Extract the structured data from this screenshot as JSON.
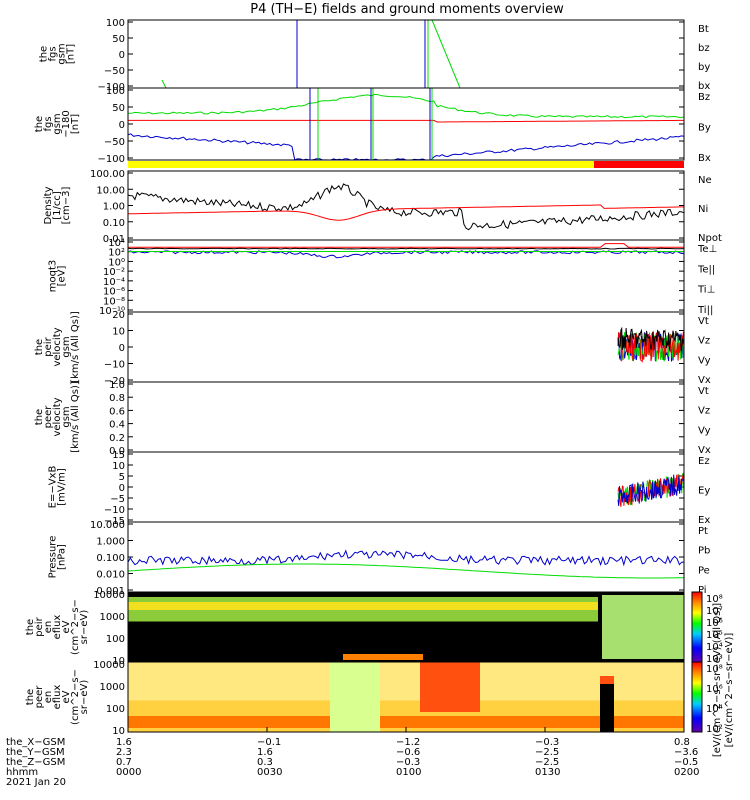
{
  "title": "P4 (TH−E) fields and ground moments overview",
  "colors": {
    "black": "#000000",
    "red": "#ff0000",
    "green": "#00dd00",
    "blue": "#0000cc",
    "yellow": "#ffff00"
  },
  "panels": [
    {
      "id": "fgs",
      "ylabel": [
        "the",
        "fgs",
        "gsm",
        "[nT]"
      ],
      "ticks": [
        "100",
        "50",
        "0",
        "−50",
        "−100"
      ],
      "legend": [
        {
          "label": "Bt",
          "color": "#000000"
        },
        {
          "label": "bz",
          "color": "#ff0000"
        },
        {
          "label": "by",
          "color": "#00dd00"
        },
        {
          "label": "bx",
          "color": "#0000cc"
        }
      ]
    },
    {
      "id": "fgs_dsl",
      "ylabel": [
        "the",
        "fgs",
        "gsm",
        "−180",
        "[nT]"
      ],
      "ticks": [
        "100",
        "50",
        "0",
        "−50",
        "−100"
      ],
      "legend": [
        {
          "label": "Bz",
          "color": "#ff0000"
        },
        {
          "label": "By",
          "color": "#00dd00"
        },
        {
          "label": "Bx",
          "color": "#0000cc"
        }
      ]
    },
    {
      "id": "density",
      "ylabel": [
        "Density",
        "[1/cc]",
        "[cm−3]"
      ],
      "ticks": [
        "100.00",
        "10.00",
        "1.00",
        "0.10",
        "0.01"
      ],
      "legend": [
        {
          "label": "Ne",
          "color": "#ff0000"
        },
        {
          "label": "Ni",
          "color": "#000000"
        },
        {
          "label": "Npot",
          "color": "#0000cc"
        }
      ]
    },
    {
      "id": "temp",
      "ylabel": [
        "moqt3",
        "[eV]"
      ],
      "ticks": [
        "10⁴",
        "10²",
        "10⁰",
        "10⁻²",
        "10⁻⁴",
        "10⁻⁶",
        "10⁻⁸",
        "10⁻¹⁰"
      ],
      "legend": [
        {
          "label": "Te⊥",
          "color": "#ff0000"
        },
        {
          "label": "Te||",
          "color": "#000000"
        },
        {
          "label": "Ti⊥",
          "color": "#0000cc"
        },
        {
          "label": "Ti||",
          "color": "#00dd00"
        }
      ]
    },
    {
      "id": "peir_vel",
      "ylabel": [
        "the",
        "peir",
        "velocity",
        "gsm",
        "[km/s (All Qs)]"
      ],
      "ticks": [
        "20",
        "10",
        "0",
        "−10",
        "−20"
      ],
      "legend": [
        {
          "label": "Vt",
          "color": "#000000"
        },
        {
          "label": "Vz",
          "color": "#ff0000"
        },
        {
          "label": "Vy",
          "color": "#00dd00"
        },
        {
          "label": "Vx",
          "color": "#0000cc"
        }
      ]
    },
    {
      "id": "peer_vel",
      "ylabel": [
        "the",
        "peer",
        "velocity",
        "gsm",
        "[km/s (All Qs)]"
      ],
      "ticks": [
        "1.0",
        "0.8",
        "0.6",
        "0.4",
        "0.2",
        "0.0"
      ],
      "legend": [
        {
          "label": "Vt",
          "color": "#000000"
        },
        {
          "label": "Vz",
          "color": "#ff0000"
        },
        {
          "label": "Vy",
          "color": "#00dd00"
        },
        {
          "label": "Vx",
          "color": "#0000cc"
        }
      ]
    },
    {
      "id": "efield",
      "ylabel": [
        "E=−VxB",
        "[mV/m]"
      ],
      "ticks": [
        "15",
        "10",
        "5",
        "0",
        "−5",
        "−10",
        "−15"
      ],
      "legend": [
        {
          "label": "Ez",
          "color": "#ff0000"
        },
        {
          "label": "Ey",
          "color": "#00dd00"
        },
        {
          "label": "Ex",
          "color": "#0000cc"
        }
      ]
    },
    {
      "id": "pressure",
      "ylabel": [
        "Pressure",
        "[nPa]"
      ],
      "ticks": [
        "10.000",
        "1.000",
        "0.100",
        "0.010",
        "0.001"
      ],
      "legend": [
        {
          "label": "Pt",
          "color": "#000000"
        },
        {
          "label": "Pb",
          "color": "#ff0000"
        },
        {
          "label": "Pe",
          "color": "#00dd00"
        },
        {
          "label": "Pi",
          "color": "#0000cc"
        }
      ]
    },
    {
      "id": "peir_spec",
      "ylabel": [
        "the",
        "peir",
        "en",
        "eflux",
        "eV",
        "(cm^2−s−",
        "sr−eV)"
      ],
      "ticks": [
        "10000",
        "1000",
        "100",
        "10"
      ],
      "cbar_ticks": [
        "10⁸",
        "10⁷",
        "10⁶",
        "10⁵",
        "10⁴",
        "10³"
      ]
    },
    {
      "id": "peer_spec",
      "ylabel": [
        "the",
        "peer",
        "en",
        "eflux",
        "eV",
        "(cm^2−s−",
        "sr−eV)"
      ],
      "ticks": [
        "10000",
        "1000",
        "100",
        "10"
      ],
      "cbar_ticks": [
        "10⁸",
        "10⁶",
        "10⁴",
        "10²"
      ]
    }
  ],
  "cbar_label_top": "[eV/(cm^2−s−sr−eV) (All Qs)]",
  "cbar_label_bottom": "[eV/(cm^2−s−sr−eV)]",
  "xaxis": {
    "row_labels": [
      "the_X−GSM",
      "the_Y−GSM",
      "the_Z−GSM",
      "hhmm",
      "2021 Jan 20"
    ],
    "columns": [
      {
        "x": "1.6",
        "y": "2.3",
        "z": "0.7",
        "t": "0000"
      },
      {
        "x": "−0.1",
        "y": "1.6",
        "z": "0.3",
        "t": "0030"
      },
      {
        "x": "−1.2",
        "y": "−0.6",
        "z": "−0.3",
        "t": "0100"
      },
      {
        "x": "−0.3",
        "y": "−2.5",
        "z": "−2.5",
        "t": "0130"
      },
      {
        "x": "0.8",
        "y": "−3.6",
        "z": "−0.5",
        "t": "0200"
      }
    ]
  },
  "chart_data": [
    {
      "type": "line",
      "title": "P4 (TH−E) fields and ground moments overview",
      "ylabel": "the fgs gsm [nT]",
      "ylim": [
        -100,
        100
      ],
      "series": [
        {
          "name": "bx"
        },
        {
          "name": "by"
        },
        {
          "name": "bz"
        },
        {
          "name": "Bt"
        }
      ]
    },
    {
      "type": "line",
      "ylabel": "the fgs gsm −180 [nT]",
      "ylim": [
        -120,
        120
      ],
      "series": [
        {
          "name": "Bz"
        },
        {
          "name": "By"
        },
        {
          "name": "Bx"
        }
      ]
    },
    {
      "type": "line",
      "ylabel": "Density [cm−3]",
      "ylim": [
        0.01,
        100
      ],
      "yscale": "log",
      "series": [
        {
          "name": "Ne"
        },
        {
          "name": "Ni"
        },
        {
          "name": "Npot"
        }
      ]
    },
    {
      "type": "line",
      "ylabel": "moqt3 [eV]",
      "yscale": "log",
      "series": [
        {
          "name": "Te⊥"
        },
        {
          "name": "Te||"
        },
        {
          "name": "Ti⊥"
        },
        {
          "name": "Ti||"
        }
      ]
    },
    {
      "type": "line",
      "ylabel": "the peir velocity gsm [km/s (All Qs)]",
      "ylim": [
        -20,
        20
      ],
      "series": [
        {
          "name": "Vt"
        },
        {
          "name": "Vz"
        },
        {
          "name": "Vy"
        },
        {
          "name": "Vx"
        }
      ]
    },
    {
      "type": "line",
      "ylabel": "the peer velocity gsm [km/s (All Qs)]",
      "ylim": [
        0,
        1
      ]
    },
    {
      "type": "line",
      "ylabel": "E=−VxB [mV/m]",
      "ylim": [
        -15,
        15
      ],
      "series": [
        {
          "name": "Ez"
        },
        {
          "name": "Ey"
        },
        {
          "name": "Ex"
        }
      ]
    },
    {
      "type": "line",
      "ylabel": "Pressure [nPa]",
      "ylim": [
        0.001,
        10
      ],
      "yscale": "log",
      "series": [
        {
          "name": "Pt"
        },
        {
          "name": "Pb"
        },
        {
          "name": "Pe"
        },
        {
          "name": "Pi"
        }
      ]
    },
    {
      "type": "heatmap",
      "ylabel": "the peir en eflux",
      "yscale": "log",
      "ylim": [
        10,
        10000
      ]
    },
    {
      "type": "heatmap",
      "ylabel": "the peer en eflux",
      "yscale": "log",
      "ylim": [
        10,
        10000
      ]
    }
  ]
}
